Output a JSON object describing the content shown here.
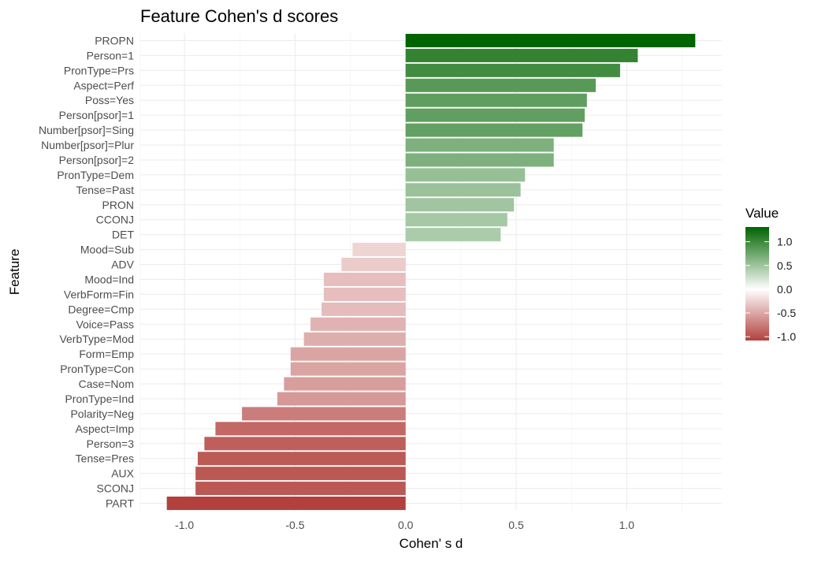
{
  "chart_data": {
    "type": "bar",
    "orientation": "horizontal",
    "title": "Feature Cohen's d scores",
    "xlabel": "Cohen' s d",
    "ylabel": "Feature",
    "xlim": [
      -1.2,
      1.43
    ],
    "x_ticks": [
      -1.0,
      -0.5,
      0.0,
      0.5,
      1.0
    ],
    "x_tick_labels": [
      "-1.0",
      "-0.5",
      "0.0",
      "0.5",
      "1.0"
    ],
    "grid": true,
    "categories": [
      "PROPN",
      "Person=1",
      "PronType=Prs",
      "Aspect=Perf",
      "Poss=Yes",
      "Person[psor]=1",
      "Number[psor]=Sing",
      "Number[psor]=Plur",
      "Person[psor]=2",
      "PronType=Dem",
      "Tense=Past",
      "PRON",
      "CCONJ",
      "DET",
      "Mood=Sub",
      "ADV",
      "Mood=Ind",
      "VerbForm=Fin",
      "Degree=Cmp",
      "Voice=Pass",
      "VerbType=Mod",
      "Form=Emp",
      "PronType=Con",
      "Case=Nom",
      "PronType=Ind",
      "Polarity=Neg",
      "Aspect=Imp",
      "Person=3",
      "Tense=Pres",
      "AUX",
      "SCONJ",
      "PART"
    ],
    "values": [
      1.31,
      1.05,
      0.97,
      0.86,
      0.82,
      0.81,
      0.8,
      0.67,
      0.67,
      0.54,
      0.52,
      0.49,
      0.46,
      0.43,
      -0.24,
      -0.29,
      -0.37,
      -0.37,
      -0.38,
      -0.43,
      -0.46,
      -0.52,
      -0.52,
      -0.55,
      -0.58,
      -0.74,
      -0.86,
      -0.91,
      -0.94,
      -0.95,
      -0.95,
      -1.08
    ],
    "legend": {
      "title": "Value",
      "placement": "right",
      "range": [
        -1.08,
        1.31
      ],
      "ticks": [
        1.0,
        0.5,
        0.0,
        -0.5,
        -1.0
      ],
      "tick_labels": [
        "1.0",
        "0.5",
        "0.0",
        "-0.5",
        "-1.0"
      ]
    },
    "colors": {
      "high": "#006400",
      "mid": "#ffffff",
      "low": "#b2413d"
    }
  }
}
